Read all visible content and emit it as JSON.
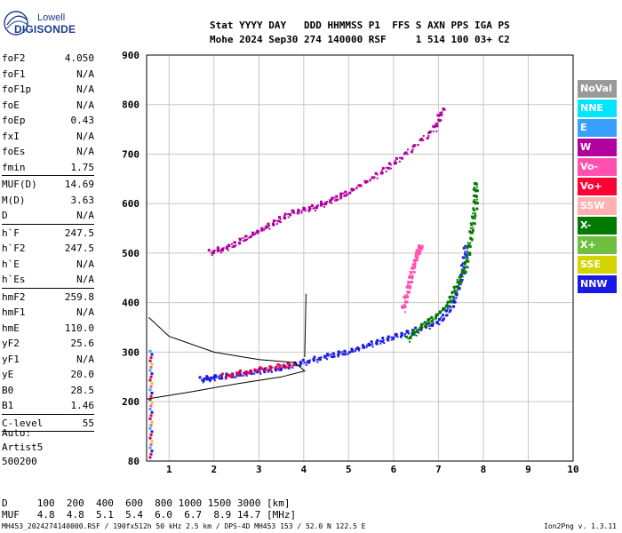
{
  "brand": {
    "top": "Lowell",
    "main": "DIGISONDE"
  },
  "header": {
    "line1": "Stat YYYY DAY   DDD HHMMSS P1  FFS S AXN PPS IGA PS",
    "line2": "Mohe 2024 Sep30 274 140000 RSF     1 514 100 03+ C2"
  },
  "params": {
    "g1": [
      {
        "k": "foF2",
        "v": "4.050"
      },
      {
        "k": "foF1",
        "v": "N/A"
      },
      {
        "k": "foF1p",
        "v": "N/A"
      },
      {
        "k": "foE",
        "v": "N/A"
      },
      {
        "k": "foEp",
        "v": "0.43"
      },
      {
        "k": "fxI",
        "v": "N/A"
      },
      {
        "k": "foEs",
        "v": "N/A"
      },
      {
        "k": "fmin",
        "v": "1.75"
      }
    ],
    "g2": [
      {
        "k": "MUF(D)",
        "v": "14.69"
      },
      {
        "k": "M(D)",
        "v": "3.63"
      },
      {
        "k": "D",
        "v": "N/A"
      }
    ],
    "g3": [
      {
        "k": "h`F",
        "v": "247.5"
      },
      {
        "k": "h`F2",
        "v": "247.5"
      },
      {
        "k": "h`E",
        "v": "N/A"
      },
      {
        "k": "h`Es",
        "v": "N/A"
      }
    ],
    "g4": [
      {
        "k": "hmF2",
        "v": "259.8"
      },
      {
        "k": "hmF1",
        "v": "N/A"
      },
      {
        "k": "hmE",
        "v": "110.0"
      },
      {
        "k": "yF2",
        "v": "25.6"
      },
      {
        "k": "yF1",
        "v": "N/A"
      },
      {
        "k": "yE",
        "v": "20.0"
      },
      {
        "k": "B0",
        "v": "28.5"
      },
      {
        "k": "B1",
        "v": "1.46"
      }
    ],
    "g5": [
      {
        "k": "C-level",
        "v": "55"
      }
    ]
  },
  "auto": {
    "l1": "Auto:",
    "l2": "Artist5",
    "l3": "500200"
  },
  "legend": [
    {
      "label": "NoVal",
      "color": "#9a9a9a"
    },
    {
      "label": "NNE",
      "color": "#00e6ff"
    },
    {
      "label": "E",
      "color": "#3aa0ff"
    },
    {
      "label": "W",
      "color": "#b0009e"
    },
    {
      "label": "Vo-",
      "color": "#ff4fb0"
    },
    {
      "label": "Vo+",
      "color": "#ff0033"
    },
    {
      "label": "SSW",
      "color": "#ffb0b0"
    },
    {
      "label": "X-",
      "color": "#007a00"
    },
    {
      "label": "X+",
      "color": "#6fbf40"
    },
    {
      "label": "SSE",
      "color": "#d4d400"
    },
    {
      "label": "NNW",
      "color": "#1a1ae6"
    }
  ],
  "bottom": {
    "line1": "D     100  200  400  600  800 1000 1500 3000 [km]",
    "line2": "MUF   4.8  4.8  5.1  5.4  6.0  6.7  8.9 14.7 [MHz]"
  },
  "footer": "MH453_2024274140000.RSF / 190fx512h 50 kHz 2.5 km / DPS-4D MH453 153 / 52.0 N 122.5 E",
  "version": "Ion2Png v. 1.3.11",
  "chart_data": {
    "type": "scatter",
    "x_ticks": [
      1,
      2,
      3,
      4,
      5,
      6,
      7,
      8,
      9,
      10
    ],
    "y_ticks": [
      80,
      200,
      300,
      400,
      500,
      600,
      700,
      800,
      900
    ],
    "xlim": [
      0.5,
      10
    ],
    "ylim": [
      80,
      900
    ],
    "grid": true,
    "series": [
      {
        "color": "#1a1ae6",
        "points": [
          [
            1.7,
            248
          ],
          [
            2.0,
            252
          ],
          [
            2.5,
            258
          ],
          [
            3.0,
            265
          ],
          [
            3.5,
            272
          ],
          [
            4.0,
            283
          ],
          [
            4.5,
            295
          ],
          [
            5.0,
            305
          ],
          [
            5.5,
            320
          ],
          [
            6.0,
            335
          ],
          [
            6.5,
            348
          ],
          [
            7.0,
            365
          ],
          [
            7.3,
            400
          ],
          [
            7.5,
            455
          ],
          [
            7.6,
            525
          ]
        ]
      },
      {
        "color": "#007a00",
        "points": [
          [
            6.3,
            330
          ],
          [
            6.6,
            355
          ],
          [
            6.9,
            375
          ],
          [
            7.2,
            400
          ],
          [
            7.4,
            440
          ],
          [
            7.6,
            480
          ],
          [
            7.7,
            540
          ],
          [
            7.8,
            600
          ],
          [
            7.8,
            650
          ]
        ]
      },
      {
        "color": "#ff4fb0",
        "points": [
          [
            6.2,
            390
          ],
          [
            6.3,
            430
          ],
          [
            6.4,
            470
          ],
          [
            6.5,
            500
          ],
          [
            6.6,
            520
          ]
        ]
      },
      {
        "color": "#b0009e",
        "points": [
          [
            1.9,
            505
          ],
          [
            2.3,
            515
          ],
          [
            2.8,
            540
          ],
          [
            3.2,
            558
          ],
          [
            3.7,
            585
          ],
          [
            4.2,
            595
          ],
          [
            4.6,
            610
          ],
          [
            5.0,
            628
          ],
          [
            5.6,
            660
          ],
          [
            6.2,
            700
          ],
          [
            6.9,
            755
          ],
          [
            7.1,
            800
          ]
        ]
      },
      {
        "color": "#ff0033",
        "points": [
          [
            2.2,
            255
          ],
          [
            3.0,
            268
          ],
          [
            3.8,
            280
          ]
        ]
      }
    ],
    "profile": [
      [
        0.55,
        370
      ],
      [
        1.0,
        332
      ],
      [
        2.0,
        300
      ],
      [
        3.0,
        285
      ],
      [
        3.8,
        279
      ],
      [
        4.02,
        262
      ],
      [
        3.5,
        250
      ],
      [
        2.5,
        236
      ],
      [
        1.5,
        220
      ],
      [
        0.5,
        205
      ]
    ],
    "foF2_line": [
      [
        4.02,
        290
      ],
      [
        4.05,
        418
      ]
    ]
  }
}
